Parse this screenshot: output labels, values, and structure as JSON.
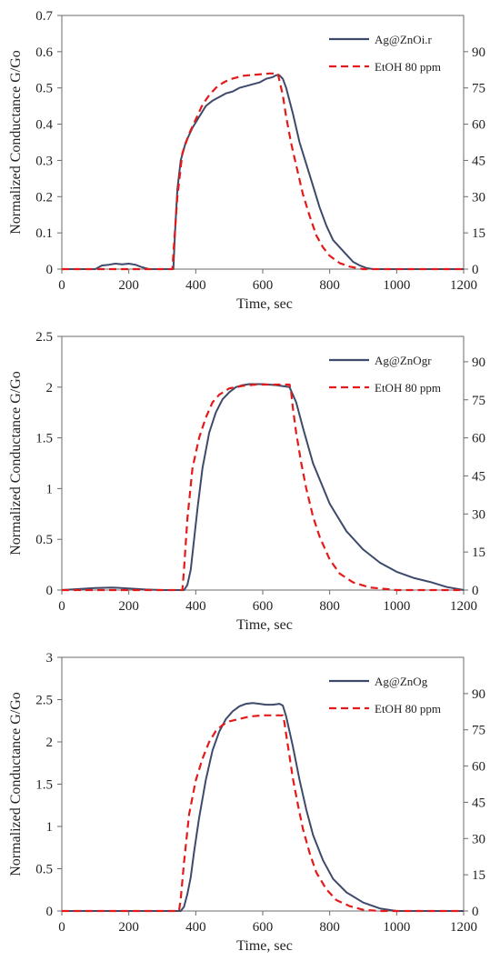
{
  "chart_data": [
    {
      "type": "line",
      "ylabel": "Normalized Conductance  G/Go",
      "xlabel": "Time, sec",
      "xlim": [
        0,
        1200
      ],
      "ylim": [
        0,
        0.7
      ],
      "y2lim": [
        0,
        105
      ],
      "xticks": [
        "0",
        "200",
        "400",
        "600",
        "800",
        "1000",
        "1200"
      ],
      "yticks": [
        "0",
        "0.1",
        "0.2",
        "0.3",
        "0.4",
        "0.5",
        "0.6",
        "0.7"
      ],
      "y2ticks": [
        "0",
        "15",
        "30",
        "45",
        "60",
        "75",
        "90"
      ],
      "legend_position": "top-right",
      "grid": false,
      "series": [
        {
          "name": "Ag@ZnOi.r",
          "color": "#3d4a6a",
          "style": "solid",
          "axis": "left",
          "x": [
            0,
            100,
            120,
            140,
            160,
            180,
            200,
            220,
            240,
            260,
            300,
            333,
            338,
            345,
            355,
            370,
            390,
            410,
            430,
            450,
            470,
            490,
            510,
            530,
            550,
            570,
            590,
            610,
            630,
            640,
            650,
            660,
            670,
            690,
            710,
            730,
            750,
            770,
            790,
            810,
            830,
            850,
            870,
            890,
            910,
            930,
            1000,
            1100,
            1200
          ],
          "y": [
            0,
            0,
            0.01,
            0.012,
            0.015,
            0.013,
            0.015,
            0.012,
            0.005,
            0,
            0,
            0,
            0.1,
            0.22,
            0.3,
            0.35,
            0.39,
            0.42,
            0.45,
            0.465,
            0.475,
            0.485,
            0.49,
            0.5,
            0.505,
            0.51,
            0.515,
            0.525,
            0.53,
            0.535,
            0.535,
            0.525,
            0.5,
            0.43,
            0.35,
            0.29,
            0.23,
            0.17,
            0.12,
            0.08,
            0.06,
            0.04,
            0.02,
            0.01,
            0.003,
            0,
            0,
            0,
            0
          ]
        },
        {
          "name": "EtOH 80 ppm",
          "color": "#e41a1a",
          "style": "dashed",
          "axis": "right",
          "x": [
            0,
            330,
            335,
            345,
            360,
            380,
            400,
            420,
            440,
            460,
            480,
            500,
            540,
            580,
            620,
            645,
            650,
            660,
            670,
            685,
            700,
            720,
            740,
            760,
            780,
            800,
            830,
            860,
            900,
            1000,
            1200
          ],
          "y": [
            0,
            0,
            10,
            30,
            48,
            56,
            62,
            68,
            72,
            75,
            77,
            78.5,
            80,
            80.5,
            81,
            81,
            78,
            72,
            63,
            52,
            43,
            31,
            22,
            14,
            9,
            5.5,
            2.5,
            1,
            0,
            0,
            0
          ]
        }
      ]
    },
    {
      "type": "line",
      "ylabel": "Normalized Conductance  G/Go",
      "xlabel": "Time, sec",
      "xlim": [
        0,
        1200
      ],
      "ylim": [
        0,
        2.5
      ],
      "y2lim": [
        0,
        100
      ],
      "xticks": [
        "0",
        "200",
        "400",
        "600",
        "800",
        "1000",
        "1200"
      ],
      "yticks": [
        "0",
        "0.5",
        "1",
        "1.5",
        "2",
        "2.5"
      ],
      "y2ticks": [
        "0",
        "15",
        "30",
        "45",
        "60",
        "75",
        "90"
      ],
      "legend_position": "top-right",
      "grid": false,
      "series": [
        {
          "name": "Ag@ZnOgr",
          "color": "#3d4a6a",
          "style": "solid",
          "axis": "left",
          "x": [
            0,
            50,
            100,
            150,
            200,
            250,
            300,
            365,
            375,
            385,
            395,
            405,
            420,
            440,
            460,
            480,
            500,
            520,
            540,
            560,
            580,
            600,
            640,
            680,
            700,
            720,
            750,
            800,
            850,
            900,
            950,
            1000,
            1050,
            1100,
            1150,
            1200
          ],
          "y": [
            0,
            0.01,
            0.02,
            0.025,
            0.015,
            0.005,
            0,
            0,
            0.05,
            0.2,
            0.5,
            0.8,
            1.2,
            1.55,
            1.75,
            1.88,
            1.95,
            2.0,
            2.02,
            2.03,
            2.03,
            2.03,
            2.02,
            2.0,
            1.85,
            1.6,
            1.25,
            0.85,
            0.58,
            0.4,
            0.27,
            0.18,
            0.12,
            0.08,
            0.03,
            0
          ]
        },
        {
          "name": "EtOH 80 ppm",
          "color": "#e41a1a",
          "style": "dashed",
          "axis": "right",
          "x": [
            0,
            360,
            365,
            375,
            390,
            410,
            430,
            450,
            470,
            500,
            540,
            580,
            620,
            660,
            680,
            685,
            690,
            700,
            715,
            730,
            750,
            770,
            800,
            830,
            870,
            920,
            1000,
            1200
          ],
          "y": [
            0,
            0,
            8,
            28,
            48,
            60,
            68,
            74,
            77,
            79.5,
            80.5,
            81,
            81,
            81,
            81,
            78,
            72,
            62,
            50,
            40,
            29,
            21,
            12,
            6.5,
            3,
            1,
            0,
            0
          ]
        }
      ]
    },
    {
      "type": "line",
      "ylabel": "Normalized Conductance  G/Go",
      "xlabel": "Time, sec",
      "xlim": [
        0,
        1200
      ],
      "ylim": [
        0,
        3
      ],
      "y2lim": [
        0,
        105
      ],
      "xticks": [
        "0",
        "200",
        "400",
        "600",
        "800",
        "1000",
        "1200"
      ],
      "yticks": [
        "0",
        "0.5",
        "1",
        "1.5",
        "2",
        "2.5",
        "3"
      ],
      "y2ticks": [
        "0",
        "15",
        "30",
        "45",
        "60",
        "75",
        "90"
      ],
      "legend_position": "top-right",
      "grid": false,
      "series": [
        {
          "name": "Ag@ZnOg",
          "color": "#3d4a6a",
          "style": "solid",
          "axis": "left",
          "x": [
            0,
            100,
            200,
            300,
            355,
            365,
            375,
            385,
            395,
            410,
            430,
            450,
            470,
            490,
            510,
            530,
            550,
            570,
            590,
            610,
            630,
            650,
            660,
            670,
            690,
            710,
            730,
            750,
            780,
            810,
            850,
            900,
            950,
            1000,
            1100,
            1200
          ],
          "y": [
            0,
            0,
            0,
            0,
            0,
            0.05,
            0.2,
            0.4,
            0.7,
            1.1,
            1.55,
            1.9,
            2.12,
            2.27,
            2.36,
            2.42,
            2.45,
            2.46,
            2.45,
            2.44,
            2.44,
            2.45,
            2.43,
            2.3,
            1.95,
            1.55,
            1.2,
            0.9,
            0.6,
            0.38,
            0.22,
            0.1,
            0.03,
            0,
            0,
            0
          ]
        },
        {
          "name": "EtOH 80 ppm",
          "color": "#e41a1a",
          "style": "dashed",
          "axis": "right",
          "x": [
            0,
            350,
            355,
            365,
            380,
            400,
            420,
            440,
            460,
            480,
            500,
            530,
            560,
            600,
            640,
            660,
            665,
            670,
            680,
            690,
            705,
            720,
            740,
            760,
            790,
            820,
            860,
            900,
            950,
            1000,
            1200
          ],
          "y": [
            0,
            0,
            5,
            20,
            40,
            54,
            63,
            70,
            74.5,
            77,
            78.5,
            79.5,
            80.5,
            81,
            81,
            81,
            78,
            73,
            64,
            55,
            44,
            34,
            24,
            16,
            9,
            4.5,
            2,
            0.5,
            0,
            0,
            0
          ]
        }
      ]
    }
  ]
}
